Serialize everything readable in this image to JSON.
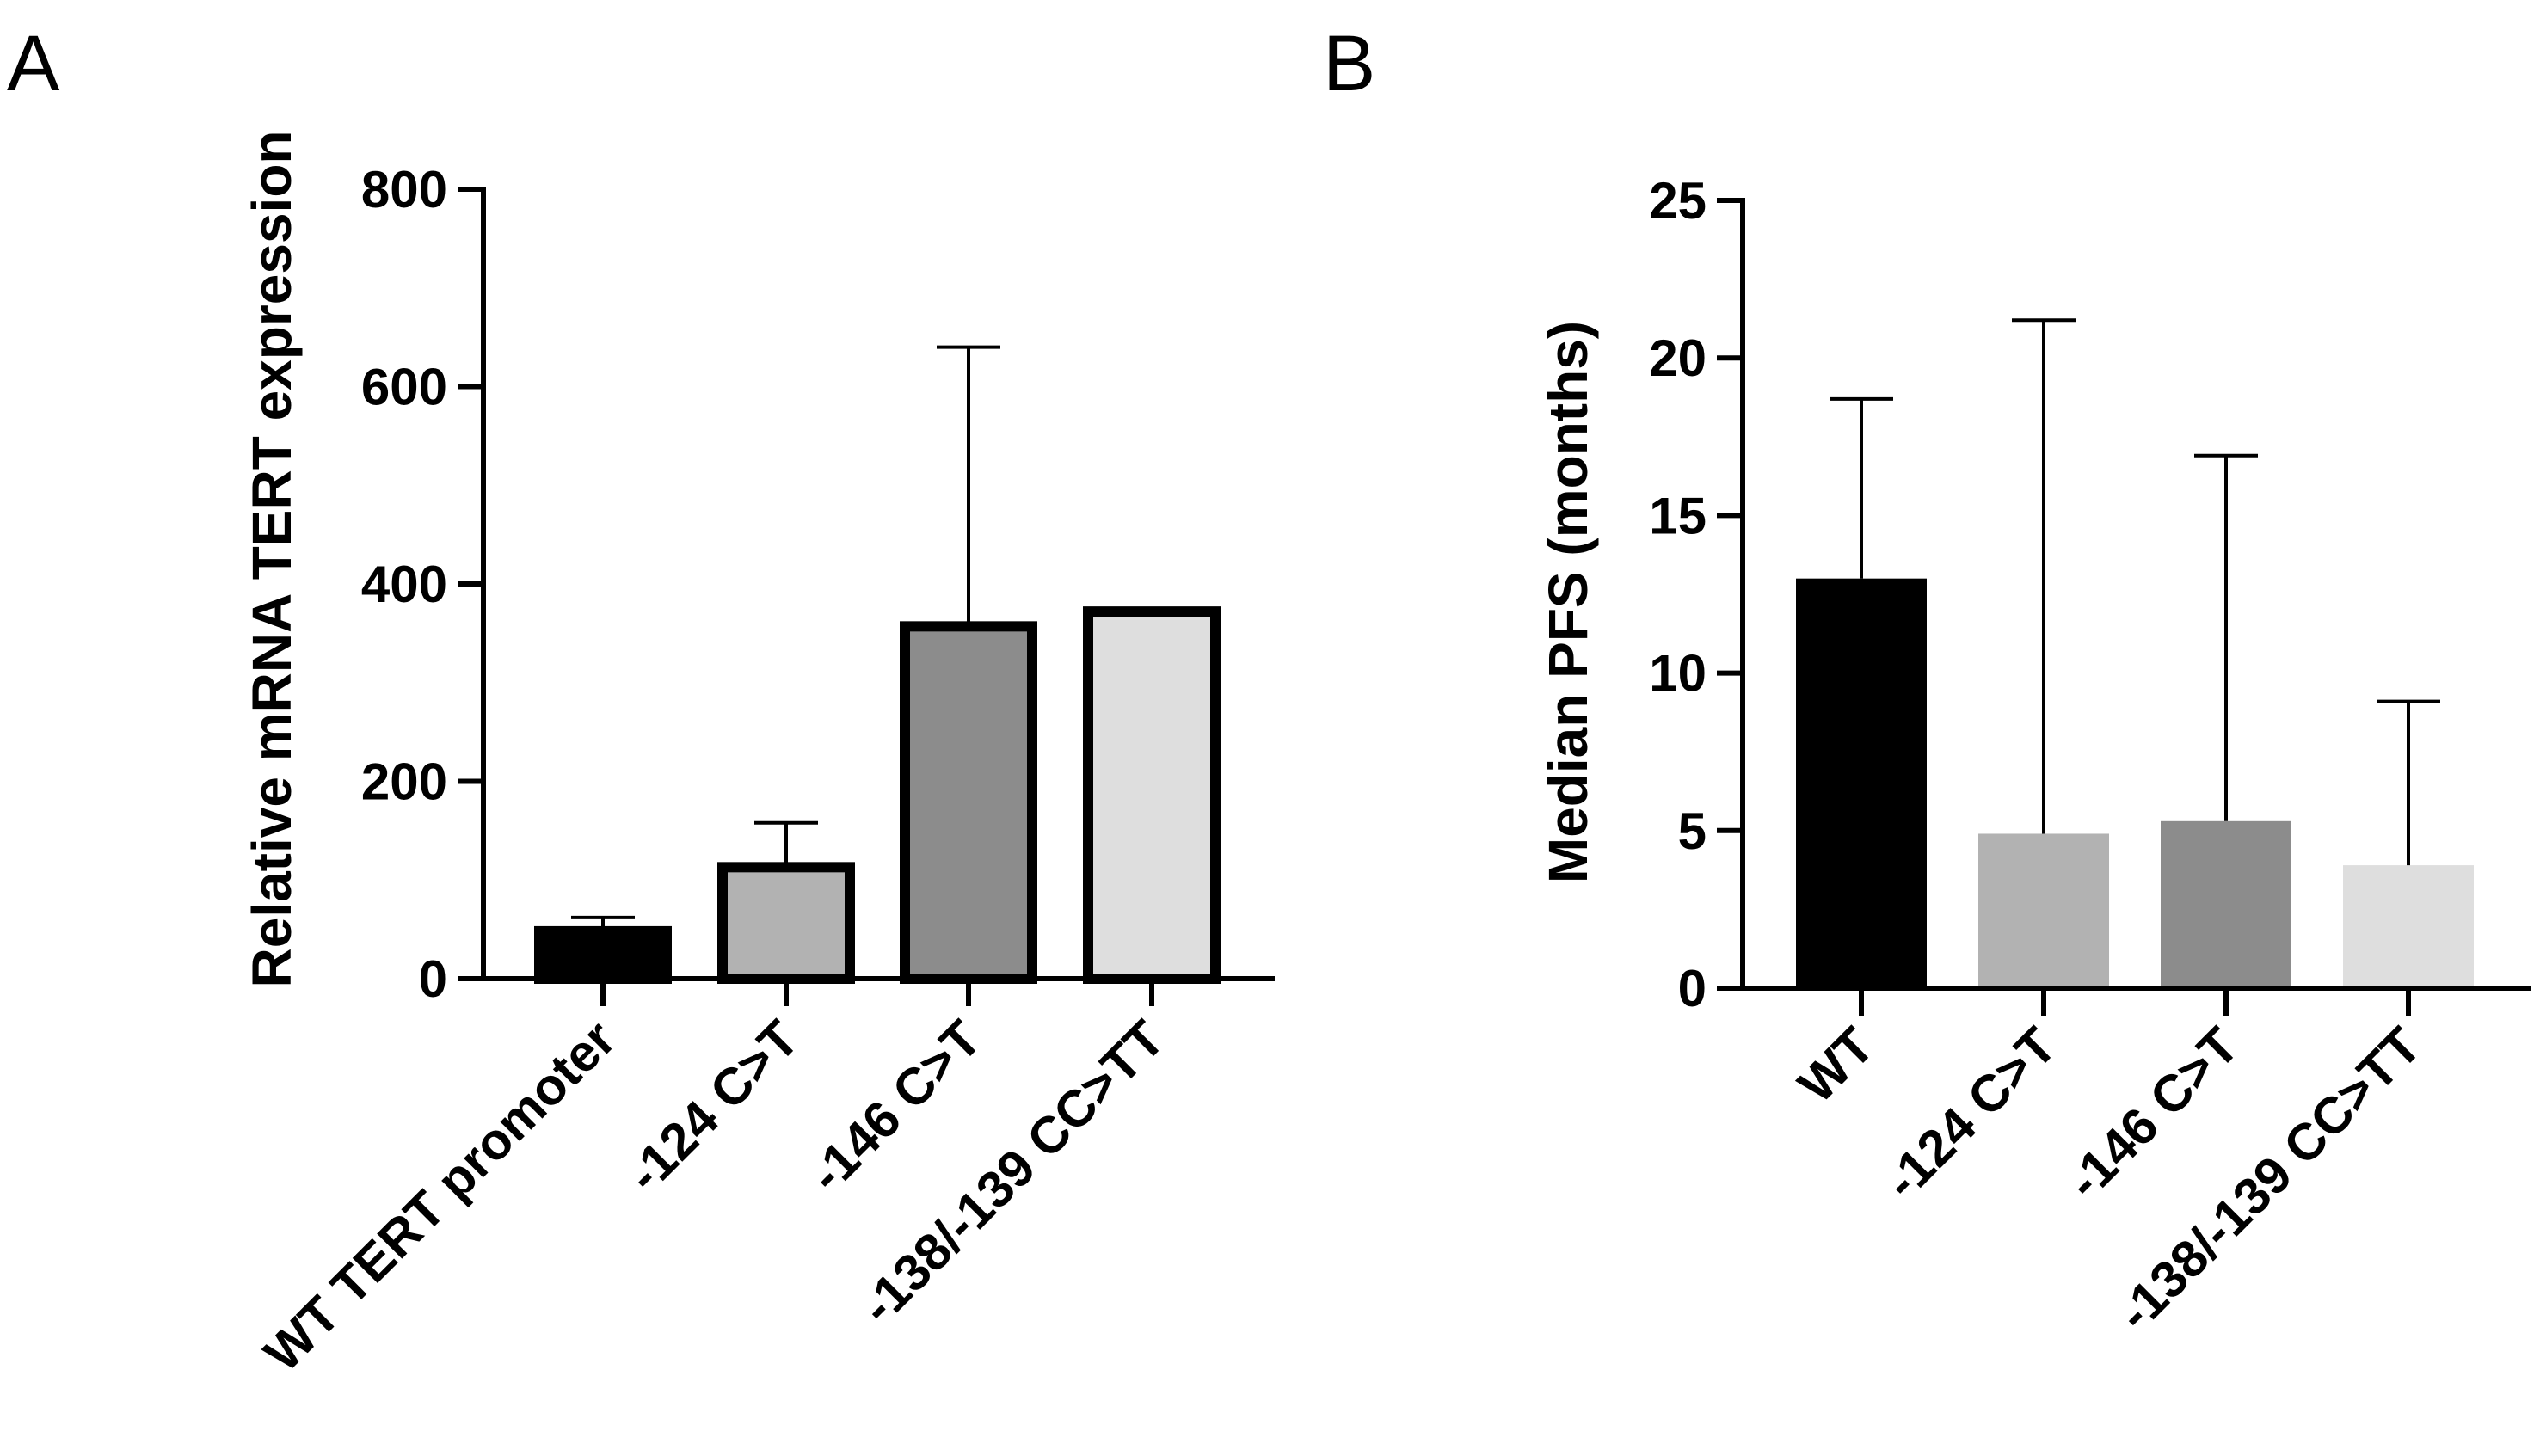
{
  "chart_data": [
    {
      "panel_label": "A",
      "type": "bar",
      "title": "",
      "xlabel": "",
      "ylabel": "Relative mRNA TERT expression",
      "ylim": [
        0,
        800
      ],
      "yticks": [
        0,
        200,
        400,
        600,
        800
      ],
      "grid": false,
      "categories": [
        "WT TERT promoter",
        "-124 C>T",
        "-146 C>T",
        "-138/-139 CC>TT"
      ],
      "values": [
        48,
        113,
        357,
        372
      ],
      "error_upper": [
        62,
        158,
        640,
        null
      ],
      "colors": [
        "#000000",
        "#b2b2b2",
        "#8c8c8c",
        "#dedede"
      ]
    },
    {
      "panel_label": "B",
      "type": "bar",
      "title": "",
      "xlabel": "",
      "ylabel": "Median PFS (months)",
      "ylim": [
        0,
        25
      ],
      "yticks": [
        0,
        5,
        10,
        15,
        20,
        25
      ],
      "grid": false,
      "categories": [
        "WT",
        "-124 C>T",
        "-146 C>T",
        "-138/-139 CC>TT"
      ],
      "values": [
        13.0,
        4.9,
        5.3,
        3.9
      ],
      "error_upper": [
        18.7,
        21.2,
        16.9,
        9.1
      ],
      "colors": [
        "#000000",
        "#b2b2b2",
        "#8c8c8c",
        "#dedede"
      ]
    }
  ]
}
